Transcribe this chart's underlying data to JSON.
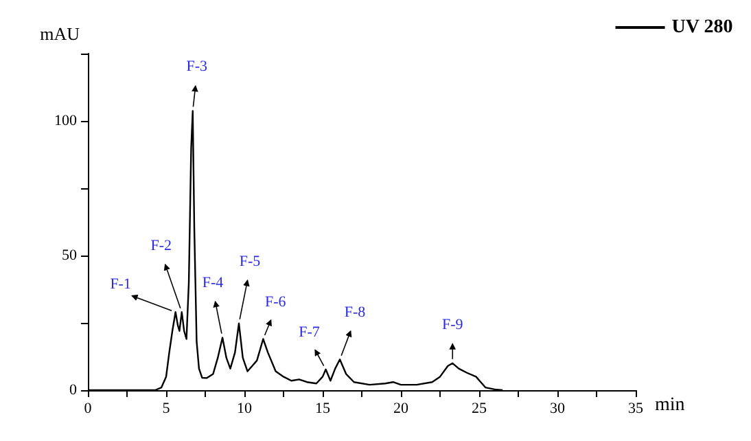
{
  "chart_data": {
    "type": "line",
    "xlabel": "min",
    "ylabel": "mAU",
    "xlim": [
      0,
      35
    ],
    "ylim": [
      0,
      125
    ],
    "xticks": [
      0,
      {
        "value": 2.5,
        "label": null
      },
      5,
      {
        "value": 7.5,
        "label": null
      },
      10,
      {
        "value": 12.5,
        "label": null
      },
      15,
      {
        "value": 17.5,
        "label": null
      },
      20,
      {
        "value": 22.5,
        "label": null
      },
      25,
      {
        "value": 27.5,
        "label": null
      },
      30,
      {
        "value": 32.5,
        "label": null
      },
      35
    ],
    "yticks": [
      0,
      {
        "value": 25,
        "label": null
      },
      50,
      {
        "value": 75,
        "label": null
      },
      100,
      {
        "value": 125,
        "label": null
      }
    ],
    "series": [
      {
        "name": "UV 280",
        "color": "#000000",
        "x": [
          0,
          4.3,
          4.7,
          5.0,
          5.2,
          5.4,
          5.6,
          5.75,
          5.85,
          6.0,
          6.15,
          6.3,
          6.45,
          6.6,
          6.7,
          6.8,
          6.95,
          7.1,
          7.3,
          7.6,
          8.0,
          8.3,
          8.6,
          8.85,
          9.1,
          9.4,
          9.65,
          9.9,
          10.2,
          10.5,
          10.8,
          11.2,
          11.5,
          12.0,
          12.5,
          13.0,
          13.5,
          14.0,
          14.6,
          15.0,
          15.2,
          15.5,
          15.8,
          16.1,
          16.5,
          17.0,
          18.0,
          19.0,
          19.5,
          20.0,
          21.0,
          22.0,
          22.5,
          23.0,
          23.3,
          23.7,
          24.2,
          24.8,
          25.1,
          25.4,
          26.0,
          26.5
        ],
        "values": [
          0,
          0,
          1,
          5,
          14,
          22,
          29,
          24,
          22,
          29,
          22,
          19,
          40,
          90,
          103.7,
          60,
          18,
          8,
          4.6,
          4.5,
          6,
          12,
          19.5,
          12,
          8,
          14,
          24.8,
          12,
          7,
          9,
          11,
          19,
          14,
          7,
          5,
          3.5,
          4,
          3,
          2.5,
          5,
          7.7,
          3.5,
          8,
          11.4,
          6,
          3,
          2,
          2.5,
          3,
          2,
          2,
          3,
          5,
          9,
          10,
          8,
          6.5,
          5,
          3,
          1,
          0.3,
          0
        ]
      }
    ],
    "legend": "top right",
    "grid": false,
    "marker": "none",
    "line_style": "solid",
    "annotations": [
      {
        "text": "F-1",
        "x": 5.6,
        "y": 29
      },
      {
        "text": "F-2",
        "x": 6.0,
        "y": 29
      },
      {
        "text": "F-3",
        "x": 6.7,
        "y": 103.7
      },
      {
        "text": "F-4",
        "x": 8.6,
        "y": 19.5
      },
      {
        "text": "F-5",
        "x": 9.65,
        "y": 24.8
      },
      {
        "text": "F-6",
        "x": 11.2,
        "y": 19
      },
      {
        "text": "F-7",
        "x": 15.2,
        "y": 7.7
      },
      {
        "text": "F-8",
        "x": 16.1,
        "y": 11.4
      },
      {
        "text": "F-9",
        "x": 23.3,
        "y": 10
      }
    ]
  }
}
